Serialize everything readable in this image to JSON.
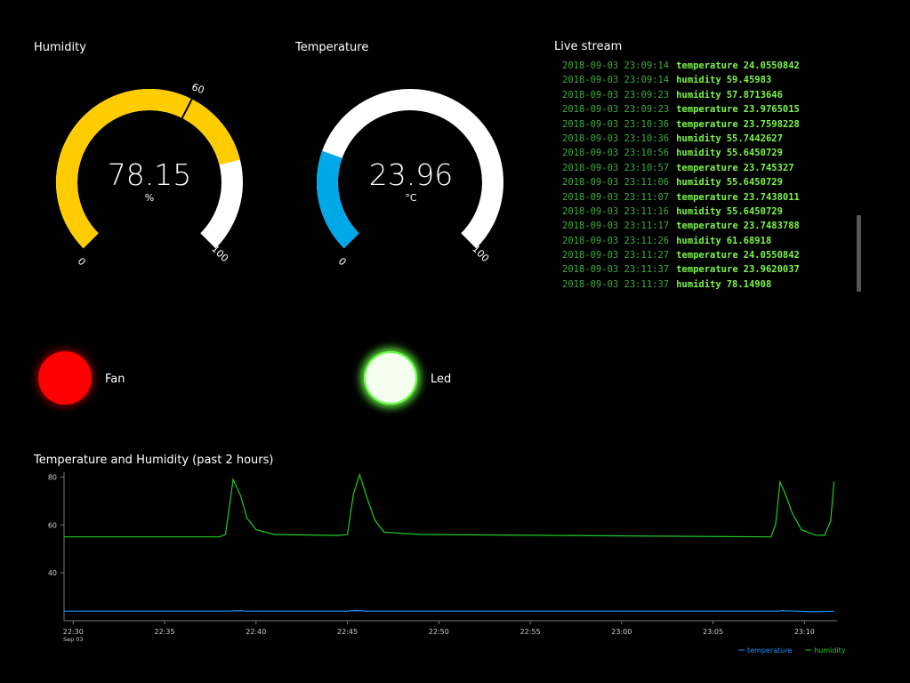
{
  "humidity_gauge": {
    "title": "Humidity",
    "value": "78.15",
    "unit": "%",
    "min_label": "0",
    "max_label": "100",
    "threshold_label": "60",
    "value_number": 78.15,
    "threshold_number": 60,
    "min": 0,
    "max": 100,
    "fill_color": "#ffcc00",
    "track_color": "#ffffff"
  },
  "temperature_gauge": {
    "title": "Temperature",
    "value": "23.96",
    "unit": "°C",
    "min_label": "0",
    "max_label": "100",
    "value_number": 23.96,
    "min": 0,
    "max": 100,
    "fill_color": "#00a8e8",
    "track_color": "#ffffff"
  },
  "live_stream": {
    "title": "Live stream",
    "rows": [
      {
        "ts": "2018-09-03 23:09:14",
        "key": "temperature",
        "val": "24.0550842"
      },
      {
        "ts": "2018-09-03 23:09:14",
        "key": "humidity",
        "val": "59.45983"
      },
      {
        "ts": "2018-09-03 23:09:23",
        "key": "humidity",
        "val": "57.8713646"
      },
      {
        "ts": "2018-09-03 23:09:23",
        "key": "temperature",
        "val": "23.9765015"
      },
      {
        "ts": "2018-09-03 23:10:36",
        "key": "temperature",
        "val": "23.7598228"
      },
      {
        "ts": "2018-09-03 23:10:36",
        "key": "humidity",
        "val": "55.7442627"
      },
      {
        "ts": "2018-09-03 23:10:56",
        "key": "humidity",
        "val": "55.6450729"
      },
      {
        "ts": "2018-09-03 23:10:57",
        "key": "temperature",
        "val": "23.745327"
      },
      {
        "ts": "2018-09-03 23:11:06",
        "key": "humidity",
        "val": "55.6450729"
      },
      {
        "ts": "2018-09-03 23:11:07",
        "key": "temperature",
        "val": "23.7438011"
      },
      {
        "ts": "2018-09-03 23:11:16",
        "key": "humidity",
        "val": "55.6450729"
      },
      {
        "ts": "2018-09-03 23:11:17",
        "key": "temperature",
        "val": "23.7483788"
      },
      {
        "ts": "2018-09-03 23:11:26",
        "key": "humidity",
        "val": "61.68918"
      },
      {
        "ts": "2018-09-03 23:11:27",
        "key": "temperature",
        "val": "24.0550842"
      },
      {
        "ts": "2018-09-03 23:11:37",
        "key": "temperature",
        "val": "23.9620037"
      },
      {
        "ts": "2018-09-03 23:11:37",
        "key": "humidity",
        "val": "78.14908"
      }
    ]
  },
  "fan": {
    "label": "Fan",
    "color": "#ff0000",
    "state": "on"
  },
  "led": {
    "label": "Led",
    "color": "#f4fff0",
    "glow": "#66ff44",
    "state": "on"
  },
  "chart_data": {
    "type": "line",
    "title": "Temperature and Humidity (past 2 hours)",
    "x_ticks": [
      "22:30",
      "22:35",
      "22:40",
      "22:45",
      "22:50",
      "22:55",
      "23:00",
      "23:05",
      "23:10"
    ],
    "x_sublabel": "Sep 03",
    "y_ticks": [
      40,
      60,
      80
    ],
    "xlim": [
      "22:29:30",
      "23:11:47"
    ],
    "ylim": [
      20,
      82
    ],
    "legend": "bottom-right",
    "series": [
      {
        "name": "temperature",
        "color": "#1e90ff",
        "points": [
          [
            "22:29:30",
            24.0
          ],
          [
            "22:38:30",
            24.0
          ],
          [
            "22:39:00",
            24.2
          ],
          [
            "22:39:30",
            24.0
          ],
          [
            "22:45:00",
            24.0
          ],
          [
            "22:45:30",
            24.3
          ],
          [
            "22:46:00",
            24.0
          ],
          [
            "23:08:30",
            24.0
          ],
          [
            "23:08:50",
            24.2
          ],
          [
            "23:09:30",
            24.0
          ],
          [
            "23:10:30",
            23.76
          ],
          [
            "23:11:37",
            23.96
          ]
        ]
      },
      {
        "name": "humidity",
        "color": "#22cc22",
        "points": [
          [
            "22:29:30",
            55.0
          ],
          [
            "22:38:00",
            55.0
          ],
          [
            "22:38:20",
            56.0
          ],
          [
            "22:38:45",
            79.0
          ],
          [
            "22:39:10",
            72.0
          ],
          [
            "22:39:30",
            63.0
          ],
          [
            "22:40:00",
            58.0
          ],
          [
            "22:41:00",
            56.0
          ],
          [
            "22:44:30",
            55.6
          ],
          [
            "22:45:00",
            56.0
          ],
          [
            "22:45:20",
            73.0
          ],
          [
            "22:45:40",
            81.0
          ],
          [
            "22:46:00",
            73.0
          ],
          [
            "22:46:30",
            62.0
          ],
          [
            "22:47:00",
            57.0
          ],
          [
            "22:49:00",
            56.0
          ],
          [
            "23:08:10",
            55.0
          ],
          [
            "23:08:25",
            60.0
          ],
          [
            "23:08:40",
            78.0
          ],
          [
            "23:09:00",
            72.0
          ],
          [
            "23:09:20",
            65.0
          ],
          [
            "23:09:50",
            58.0
          ],
          [
            "23:10:36",
            55.74
          ],
          [
            "23:11:06",
            55.65
          ],
          [
            "23:11:26",
            61.69
          ],
          [
            "23:11:37",
            78.15
          ]
        ]
      }
    ]
  }
}
